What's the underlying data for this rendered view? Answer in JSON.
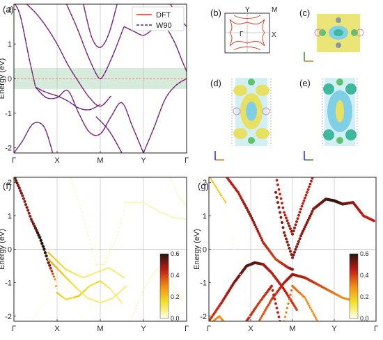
{
  "panel_labels": {
    "a": "(a)",
    "b": "(b)",
    "c": "(c)",
    "d": "(d)",
    "e": "(e)",
    "f": "(f)",
    "g": "(g)"
  },
  "colors": {
    "dft": "#e0301e",
    "w90": "#2b2bd1",
    "window": "#d7ebdc",
    "yaxis_zero": "#f06060"
  },
  "panel_b": {
    "labels": {
      "Y": "Y",
      "M": "M",
      "gamma": "Γ",
      "X": "X"
    }
  },
  "chart_data": [
    {
      "id": "a",
      "type": "line",
      "xticks": [
        "Γ",
        "X",
        "M",
        "Y",
        "Γ"
      ],
      "ylabel": "Energy (eV)",
      "ylim": [
        -2.15,
        2.15
      ],
      "yticks": [
        -2,
        -1,
        0,
        1,
        2
      ],
      "legend": {
        "position": "top-right",
        "entries": [
          "DFT",
          "W90"
        ]
      },
      "energy_window": [
        -0.3,
        0.3
      ],
      "series": [
        {
          "name": "DFT",
          "style": "solid"
        },
        {
          "name": "W90",
          "style": "dashed"
        }
      ],
      "bands": [
        {
          "x": [
            0,
            0.15,
            0.35,
            0.5
          ],
          "y": [
            2.2,
            1.8,
            0.6,
            -0.25
          ]
        },
        {
          "x": [
            0.5,
            0.75,
            1.0,
            1.25,
            1.5,
            1.75,
            2.0,
            2.25,
            2.5,
            2.75,
            3.0
          ],
          "y": [
            -0.25,
            -0.55,
            -0.55,
            -0.35,
            -1.0,
            -1.55,
            -1.6,
            -1.1,
            -0.7,
            -1.4,
            -2.15
          ]
        },
        {
          "x": [
            0.5,
            0.75,
            1.0,
            1.25,
            1.5,
            1.75,
            2.0
          ],
          "y": [
            -0.25,
            -0.4,
            -0.5,
            -0.65,
            -0.85,
            -0.9,
            -0.75
          ]
        },
        {
          "x": [
            0.25,
            0.5,
            0.75,
            1.0,
            1.25,
            1.5,
            1.75,
            2.0,
            2.25
          ],
          "y": [
            2.2,
            1.9,
            1.5,
            1.0,
            0.4,
            -0.1,
            -0.55,
            -0.8,
            -0.5
          ]
        },
        {
          "x": [
            1.2,
            1.45,
            1.7,
            1.9,
            2.0,
            2.1,
            2.3,
            2.55
          ],
          "y": [
            2.2,
            1.5,
            0.7,
            0.15,
            0.0,
            0.15,
            0.7,
            1.5
          ]
        },
        {
          "x": [
            1.6,
            1.8,
            2.0,
            2.2,
            2.4
          ],
          "y": [
            2.2,
            1.2,
            0.9,
            1.3,
            2.2
          ]
        },
        {
          "x": [
            2.55,
            2.8,
            3.0,
            3.2,
            3.45,
            3.7,
            3.9,
            4.0
          ],
          "y": [
            1.5,
            1.35,
            1.25,
            1.4,
            1.55,
            1.1,
            0.5,
            0.2
          ]
        },
        {
          "x": [
            3.6,
            3.8,
            4.0
          ],
          "y": [
            2.2,
            1.8,
            1.5
          ]
        },
        {
          "x": [
            3.0,
            3.25,
            3.5,
            3.75,
            4.0
          ],
          "y": [
            -2.15,
            -1.4,
            -0.6,
            -0.2,
            0.0
          ]
        },
        {
          "x": [
            0.0,
            0.2,
            0.45,
            0.7,
            0.9
          ],
          "y": [
            -2.15,
            -1.8,
            -1.3,
            -1.4,
            -2.15
          ]
        },
        {
          "x": [
            1.9,
            2.2,
            2.5
          ],
          "y": [
            -1.1,
            -1.5,
            -2.15
          ]
        }
      ]
    },
    {
      "id": "f",
      "type": "scatter",
      "xticks": [
        "Γ",
        "X",
        "M",
        "Y",
        "Γ"
      ],
      "ylabel": "Energy (eV)",
      "ylim": [
        -2.15,
        2.15
      ],
      "yticks": [
        -2,
        -1,
        0,
        1,
        2
      ],
      "colorbar": {
        "min": 0.0,
        "max": 0.6,
        "ticks": [
          0.0,
          0.2,
          0.4,
          0.6
        ]
      },
      "bands": [
        {
          "x": [
            0,
            0.2,
            0.4,
            0.6,
            0.7,
            0.8,
            0.95,
            1.0
          ],
          "y": [
            2.2,
            1.6,
            0.9,
            0.35,
            0.0,
            -0.4,
            -0.9,
            -1.3
          ],
          "w": [
            0.55,
            0.5,
            0.5,
            0.6,
            0.6,
            0.55,
            0.3,
            0.2
          ]
        },
        {
          "x": [
            1.0,
            1.2,
            1.5,
            1.75,
            2.0,
            2.25,
            2.5
          ],
          "y": [
            -1.3,
            -1.5,
            -1.4,
            -1.1,
            -0.95,
            -1.2,
            -1.6
          ],
          "w": [
            0.2,
            0.15,
            0.2,
            0.15,
            0.15,
            0.1,
            0.1
          ]
        },
        {
          "x": [
            0.8,
            1.1,
            1.4,
            1.7,
            2.0,
            2.3,
            2.6
          ],
          "y": [
            -0.3,
            -0.7,
            -1.1,
            -1.45,
            -1.6,
            -1.45,
            -1.1
          ],
          "w": [
            0.25,
            0.2,
            0.15,
            0.1,
            0.1,
            0.1,
            0.1
          ]
        },
        {
          "x": [
            0.8,
            1.2,
            1.6,
            1.9,
            2.2,
            2.55
          ],
          "y": [
            -0.1,
            -0.6,
            -0.85,
            -0.7,
            -0.55,
            -0.85
          ],
          "w": [
            0.2,
            0.15,
            0.1,
            0.1,
            0.1,
            0.1
          ]
        },
        {
          "x": [
            1.3,
            1.6,
            1.9,
            2.1,
            2.4,
            2.6
          ],
          "y": [
            2.2,
            1.0,
            -0.45,
            -0.45,
            0.4,
            1.4
          ],
          "w": [
            0.05,
            0.05,
            0.05,
            0.05,
            0.05,
            0.05
          ]
        },
        {
          "x": [
            2.55,
            3.0,
            3.4,
            3.7,
            4.0
          ],
          "y": [
            1.4,
            1.4,
            1.1,
            0.95,
            0.9
          ],
          "w": [
            0.05,
            0.05,
            0.05,
            0.05,
            0.05
          ]
        },
        {
          "x": [
            3.6,
            3.8,
            4.0
          ],
          "y": [
            2.2,
            1.6,
            1.3
          ],
          "w": [
            0.05,
            0.05,
            0.05
          ]
        },
        {
          "x": [
            2.7,
            3.0,
            3.3,
            3.6,
            3.9
          ],
          "y": [
            -2.15,
            -1.2,
            -0.6,
            -0.9,
            -1.5
          ],
          "w": [
            0.05,
            0.05,
            0.05,
            0.05,
            0.05
          ]
        },
        {
          "x": [
            0.4,
            0.7,
            1.0,
            1.3,
            1.6
          ],
          "y": [
            -2.15,
            -1.6,
            -0.9,
            -1.3,
            -2.15
          ],
          "w": [
            0.02,
            0.02,
            0.02,
            0.02,
            0.02
          ]
        },
        {
          "x": [
            1.6,
            1.75,
            1.9,
            2.1,
            2.3
          ],
          "y": [
            2.2,
            1.0,
            0.0,
            -0.3,
            0.5
          ],
          "w": [
            0.02,
            0.02,
            0.02,
            0.02,
            0.02
          ]
        }
      ]
    },
    {
      "id": "g",
      "type": "scatter",
      "xticks": [
        "Γ",
        "X",
        "M",
        "Y",
        "Γ"
      ],
      "ylabel": "Energy (eV)",
      "ylim": [
        -2.15,
        2.15
      ],
      "yticks": [
        -2,
        -1,
        0,
        1,
        2
      ],
      "colorbar": {
        "min": 0.0,
        "max": 0.6,
        "ticks": [
          0.0,
          0.2,
          0.4,
          0.6
        ]
      },
      "bands": [
        {
          "x": [
            0,
            0.2,
            0.4
          ],
          "y": [
            2.2,
            1.8,
            1.4
          ],
          "w": [
            0.2,
            0.2,
            0.2
          ]
        },
        {
          "x": [
            0.4,
            0.7,
            1.0,
            1.3,
            1.6,
            1.9,
            2.0
          ],
          "y": [
            2.2,
            1.7,
            1.0,
            0.2,
            -0.3,
            -0.55,
            -0.6
          ],
          "w": [
            0.45,
            0.45,
            0.5,
            0.45,
            0.4,
            0.45,
            0.5
          ]
        },
        {
          "x": [
            1.6,
            1.8,
            2.0,
            2.2,
            2.5
          ],
          "y": [
            2.2,
            1.1,
            0.45,
            1.2,
            2.2
          ],
          "w": [
            0.45,
            0.45,
            0.5,
            0.45,
            0.45
          ]
        },
        {
          "x": [
            1.6,
            1.8,
            2.0,
            2.2,
            2.5,
            2.8,
            3.0,
            3.2,
            3.45,
            3.7,
            3.95
          ],
          "y": [
            1.7,
            0.5,
            -0.25,
            0.4,
            1.2,
            1.5,
            1.45,
            1.35,
            1.4,
            1.0,
            0.85
          ],
          "w": [
            0.5,
            0.5,
            0.5,
            0.5,
            0.5,
            0.55,
            0.6,
            0.55,
            0.5,
            0.45,
            0.45
          ]
        },
        {
          "x": [
            0.0,
            0.3,
            0.6,
            0.9,
            1.1,
            1.3,
            1.5,
            1.8,
            2.1
          ],
          "y": [
            -2.15,
            -1.6,
            -1.0,
            -0.5,
            -0.4,
            -0.45,
            -0.7,
            -1.2,
            -1.8
          ],
          "w": [
            0.4,
            0.45,
            0.5,
            0.55,
            0.55,
            0.5,
            0.45,
            0.45,
            0.4
          ]
        },
        {
          "x": [
            1.2,
            1.5,
            1.8,
            2.0,
            2.3,
            2.6,
            2.9,
            3.2,
            3.5
          ],
          "y": [
            -2.15,
            -1.5,
            -1.0,
            -0.75,
            -0.85,
            -1.05,
            -1.25,
            -1.45,
            -1.55
          ],
          "w": [
            0.35,
            0.4,
            0.45,
            0.5,
            0.45,
            0.4,
            0.35,
            0.3,
            0.3
          ]
        },
        {
          "x": [
            1.8,
            2.0,
            2.3,
            2.6
          ],
          "y": [
            -2.15,
            -1.1,
            -1.45,
            -2.15
          ],
          "w": [
            0.3,
            0.35,
            0.3,
            0.3
          ]
        },
        {
          "x": [
            0.9,
            1.2,
            1.5,
            1.7
          ],
          "y": [
            -2.15,
            -1.6,
            -1.1,
            -2.15
          ],
          "w": [
            0.45,
            0.4,
            0.45,
            0.45
          ]
        },
        {
          "x": [
            0.2,
            0.4,
            0.6,
            0.8,
            1.0
          ],
          "y": [
            2.2,
            1.2,
            0.0,
            -1.0,
            -2.15
          ],
          "w": [
            0.02,
            0.02,
            0.02,
            0.02,
            0.02
          ]
        },
        {
          "x": [
            0.1,
            0.25,
            0.35
          ],
          "y": [
            -2.15,
            -2.0,
            -2.15
          ],
          "w": [
            0.3,
            0.3,
            0.3
          ]
        }
      ]
    }
  ]
}
